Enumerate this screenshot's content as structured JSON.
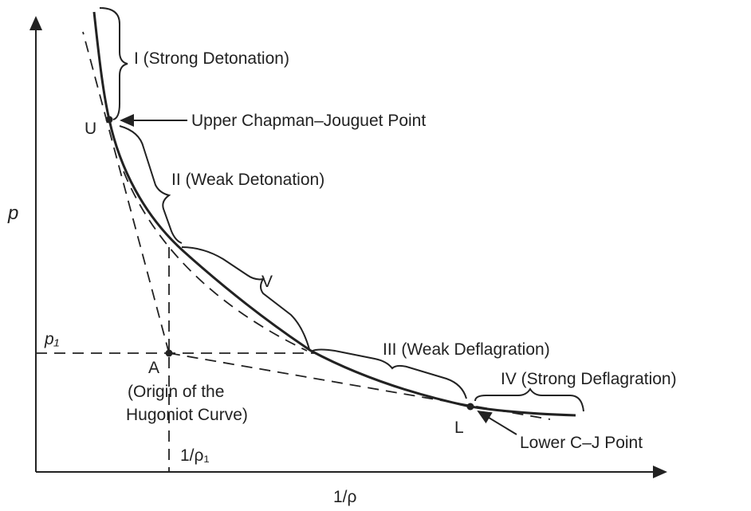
{
  "axes": {
    "y_label": "p",
    "x_label": "1/ρ",
    "p1_label": "p₁",
    "v1_label": "1/ρ₁"
  },
  "points": {
    "upper": "U",
    "origin": "A",
    "lower": "L"
  },
  "regions": {
    "strong_detonation": "I (Strong Detonation)",
    "weak_detonation": "II (Weak Detonation)",
    "v": "V",
    "weak_deflagration": "III (Weak Deflagration)",
    "strong_deflagration": "IV (Strong Deflagration)"
  },
  "annotations": {
    "upper_cj": "Upper Chapman–Jouguet Point",
    "lower_cj": "Lower C–J Point",
    "origin_line1": "(Origin of the",
    "origin_line2": "Hugoniot Curve)"
  }
}
